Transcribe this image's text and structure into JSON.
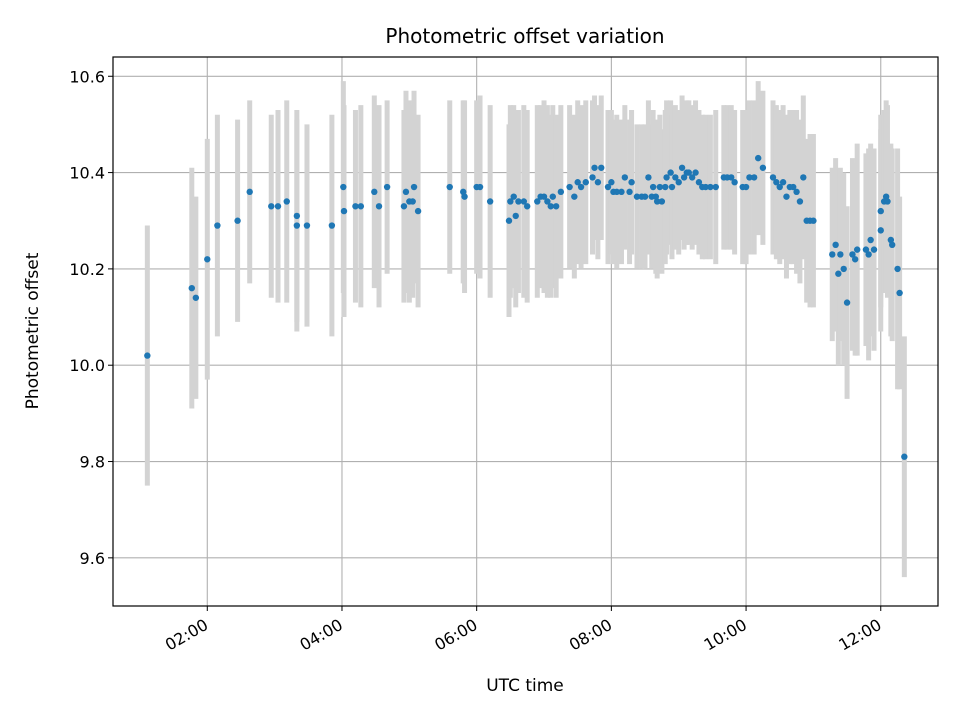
{
  "chart_data": {
    "type": "scatter",
    "title": "Photometric offset variation",
    "xlabel": "UTC time",
    "ylabel": "Photometric offset",
    "grid": true,
    "xlim_hours": [
      0.6,
      12.85
    ],
    "ylim": [
      9.5,
      10.64
    ],
    "x_ticks": [
      {
        "value": 2,
        "label": "02:00"
      },
      {
        "value": 4,
        "label": "04:00"
      },
      {
        "value": 6,
        "label": "06:00"
      },
      {
        "value": 8,
        "label": "08:00"
      },
      {
        "value": 10,
        "label": "10:00"
      },
      {
        "value": 12,
        "label": "12:00"
      }
    ],
    "y_ticks": [
      {
        "value": 9.6,
        "label": "9.6"
      },
      {
        "value": 9.8,
        "label": "9.8"
      },
      {
        "value": 10.0,
        "label": "10.0"
      },
      {
        "value": 10.2,
        "label": "10.2"
      },
      {
        "value": 10.4,
        "label": "10.4"
      },
      {
        "value": 10.6,
        "label": "10.6"
      }
    ],
    "marker_color": "#1f77b4",
    "errorbar_color": "#d3d3d3",
    "series": [
      {
        "name": "offset",
        "points": [
          [
            1.11,
            10.02,
            0.27
          ],
          [
            1.77,
            10.16,
            0.25
          ],
          [
            1.83,
            10.14,
            0.21
          ],
          [
            2.0,
            10.22,
            0.25
          ],
          [
            2.15,
            10.29,
            0.23
          ],
          [
            2.45,
            10.3,
            0.21
          ],
          [
            2.63,
            10.36,
            0.19
          ],
          [
            2.95,
            10.33,
            0.19
          ],
          [
            3.05,
            10.33,
            0.2
          ],
          [
            3.18,
            10.34,
            0.21
          ],
          [
            3.33,
            10.31,
            0.22
          ],
          [
            3.33,
            10.29,
            0.22
          ],
          [
            3.48,
            10.29,
            0.21
          ],
          [
            3.85,
            10.29,
            0.23
          ],
          [
            4.02,
            10.37,
            0.22
          ],
          [
            4.03,
            10.32,
            0.22
          ],
          [
            4.2,
            10.33,
            0.2
          ],
          [
            4.28,
            10.33,
            0.21
          ],
          [
            4.48,
            10.36,
            0.2
          ],
          [
            4.55,
            10.33,
            0.21
          ],
          [
            4.67,
            10.37,
            0.18
          ],
          [
            4.92,
            10.33,
            0.2
          ],
          [
            4.95,
            10.36,
            0.21
          ],
          [
            5.0,
            10.34,
            0.21
          ],
          [
            5.05,
            10.34,
            0.2
          ],
          [
            5.07,
            10.37,
            0.2
          ],
          [
            5.13,
            10.32,
            0.2
          ],
          [
            5.6,
            10.37,
            0.18
          ],
          [
            5.8,
            10.36,
            0.19
          ],
          [
            5.82,
            10.35,
            0.2
          ],
          [
            6.0,
            10.37,
            0.18
          ],
          [
            6.05,
            10.37,
            0.19
          ],
          [
            6.2,
            10.34,
            0.2
          ],
          [
            6.48,
            10.3,
            0.2
          ],
          [
            6.5,
            10.34,
            0.2
          ],
          [
            6.55,
            10.35,
            0.19
          ],
          [
            6.58,
            10.31,
            0.19
          ],
          [
            6.62,
            10.34,
            0.19
          ],
          [
            6.7,
            10.34,
            0.2
          ],
          [
            6.75,
            10.33,
            0.2
          ],
          [
            6.9,
            10.34,
            0.2
          ],
          [
            6.95,
            10.35,
            0.19
          ],
          [
            7.0,
            10.35,
            0.2
          ],
          [
            7.05,
            10.34,
            0.2
          ],
          [
            7.1,
            10.33,
            0.19
          ],
          [
            7.13,
            10.35,
            0.19
          ],
          [
            7.18,
            10.33,
            0.19
          ],
          [
            7.25,
            10.36,
            0.18
          ],
          [
            7.38,
            10.37,
            0.17
          ],
          [
            7.45,
            10.35,
            0.17
          ],
          [
            7.5,
            10.38,
            0.17
          ],
          [
            7.55,
            10.37,
            0.17
          ],
          [
            7.62,
            10.38,
            0.17
          ],
          [
            7.72,
            10.39,
            0.16
          ],
          [
            7.75,
            10.41,
            0.15
          ],
          [
            7.8,
            10.38,
            0.16
          ],
          [
            7.85,
            10.41,
            0.15
          ],
          [
            7.95,
            10.37,
            0.16
          ],
          [
            8.0,
            10.38,
            0.15
          ],
          [
            8.03,
            10.36,
            0.15
          ],
          [
            8.08,
            10.36,
            0.16
          ],
          [
            8.15,
            10.36,
            0.15
          ],
          [
            8.2,
            10.39,
            0.15
          ],
          [
            8.27,
            10.36,
            0.15
          ],
          [
            8.3,
            10.38,
            0.15
          ],
          [
            8.38,
            10.35,
            0.15
          ],
          [
            8.45,
            10.35,
            0.15
          ],
          [
            8.5,
            10.35,
            0.15
          ],
          [
            8.55,
            10.39,
            0.16
          ],
          [
            8.6,
            10.35,
            0.15
          ],
          [
            8.62,
            10.37,
            0.16
          ],
          [
            8.66,
            10.35,
            0.16
          ],
          [
            8.68,
            10.34,
            0.16
          ],
          [
            8.72,
            10.37,
            0.15
          ],
          [
            8.75,
            10.34,
            0.15
          ],
          [
            8.8,
            10.37,
            0.16
          ],
          [
            8.82,
            10.39,
            0.16
          ],
          [
            8.88,
            10.4,
            0.15
          ],
          [
            8.9,
            10.37,
            0.15
          ],
          [
            8.95,
            10.39,
            0.15
          ],
          [
            9.0,
            10.38,
            0.15
          ],
          [
            9.05,
            10.41,
            0.15
          ],
          [
            9.08,
            10.39,
            0.15
          ],
          [
            9.12,
            10.4,
            0.15
          ],
          [
            9.15,
            10.4,
            0.15
          ],
          [
            9.2,
            10.39,
            0.15
          ],
          [
            9.25,
            10.4,
            0.15
          ],
          [
            9.3,
            10.38,
            0.15
          ],
          [
            9.35,
            10.37,
            0.15
          ],
          [
            9.4,
            10.37,
            0.15
          ],
          [
            9.47,
            10.37,
            0.15
          ],
          [
            9.55,
            10.37,
            0.16
          ],
          [
            9.67,
            10.39,
            0.15
          ],
          [
            9.72,
            10.39,
            0.15
          ],
          [
            9.78,
            10.39,
            0.15
          ],
          [
            9.83,
            10.38,
            0.15
          ],
          [
            9.95,
            10.37,
            0.16
          ],
          [
            10.0,
            10.37,
            0.16
          ],
          [
            10.05,
            10.39,
            0.16
          ],
          [
            10.12,
            10.39,
            0.16
          ],
          [
            10.18,
            10.43,
            0.16
          ],
          [
            10.25,
            10.41,
            0.16
          ],
          [
            10.4,
            10.39,
            0.16
          ],
          [
            10.45,
            10.38,
            0.16
          ],
          [
            10.5,
            10.37,
            0.16
          ],
          [
            10.55,
            10.38,
            0.16
          ],
          [
            10.6,
            10.35,
            0.17
          ],
          [
            10.65,
            10.37,
            0.16
          ],
          [
            10.7,
            10.37,
            0.16
          ],
          [
            10.75,
            10.36,
            0.17
          ],
          [
            10.8,
            10.34,
            0.17
          ],
          [
            10.85,
            10.39,
            0.17
          ],
          [
            10.9,
            10.3,
            0.17
          ],
          [
            10.95,
            10.3,
            0.18
          ],
          [
            11.0,
            10.3,
            0.18
          ],
          [
            11.28,
            10.23,
            0.18
          ],
          [
            11.33,
            10.25,
            0.18
          ],
          [
            11.37,
            10.19,
            0.19
          ],
          [
            11.4,
            10.23,
            0.18
          ],
          [
            11.45,
            10.2,
            0.2
          ],
          [
            11.5,
            10.13,
            0.2
          ],
          [
            11.58,
            10.23,
            0.2
          ],
          [
            11.62,
            10.22,
            0.2
          ],
          [
            11.65,
            10.24,
            0.22
          ],
          [
            11.78,
            10.24,
            0.2
          ],
          [
            11.82,
            10.23,
            0.22
          ],
          [
            11.85,
            10.26,
            0.2
          ],
          [
            11.9,
            10.24,
            0.21
          ],
          [
            12.0,
            10.32,
            0.2
          ],
          [
            12.0,
            10.28,
            0.21
          ],
          [
            12.05,
            10.34,
            0.19
          ],
          [
            12.08,
            10.35,
            0.2
          ],
          [
            12.1,
            10.34,
            0.2
          ],
          [
            12.15,
            10.26,
            0.2
          ],
          [
            12.17,
            10.25,
            0.2
          ],
          [
            12.25,
            10.2,
            0.25
          ],
          [
            12.28,
            10.15,
            0.2
          ],
          [
            12.35,
            9.81,
            0.25
          ]
        ]
      }
    ]
  }
}
